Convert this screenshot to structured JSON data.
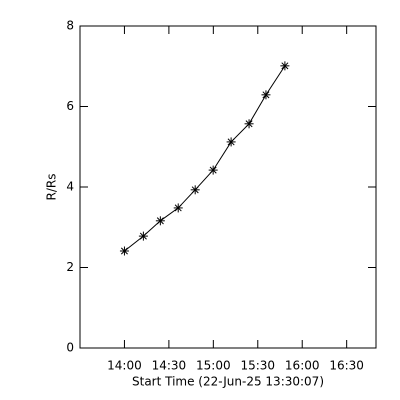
{
  "chart_data": {
    "type": "line",
    "x_label": "Start Time (22-Jun-25 13:30:07)",
    "y_label": "R/Rs",
    "x": [
      14.0,
      14.213,
      14.404,
      14.605,
      14.796,
      14.998,
      15.2,
      15.402,
      15.592,
      15.805
    ],
    "values": [
      2.41,
      2.78,
      3.16,
      3.48,
      3.93,
      4.42,
      5.12,
      5.57,
      6.29,
      7.01
    ],
    "color": "#000000",
    "xlim": [
      13.5,
      16.83
    ],
    "xticks": [
      {
        "value": 14,
        "label": "14:00"
      },
      {
        "value": 14.5,
        "label": "14:30"
      },
      {
        "value": 15,
        "label": "15:00"
      },
      {
        "value": 15.5,
        "label": "15:30"
      },
      {
        "value": 16,
        "label": "16:00"
      },
      {
        "value": 16.5,
        "label": "16:30"
      }
    ],
    "ylim": [
      0,
      8
    ],
    "yticks": [
      0,
      2,
      4,
      6,
      8
    ]
  }
}
